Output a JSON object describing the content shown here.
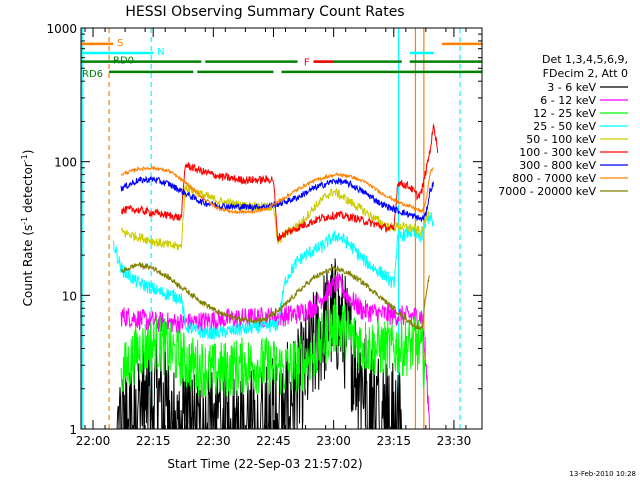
{
  "chart_data": {
    "type": "line",
    "title": "HESSI Observing Summary Count Rates",
    "xlabel": "Start Time (22-Sep-03 21:57:02)",
    "ylabel_parts": [
      "Count Rate (s",
      "-1",
      " detector",
      "-1",
      ")"
    ],
    "x_unit": "minutes after 21:57:02",
    "xlim": [
      0,
      100
    ],
    "ylim": [
      1,
      1000
    ],
    "yscale": "log",
    "x_ticks": [
      {
        "t": 3,
        "label": "22:00"
      },
      {
        "t": 18,
        "label": "22:15"
      },
      {
        "t": 33,
        "label": "22:30"
      },
      {
        "t": 48,
        "label": "22:45"
      },
      {
        "t": 63,
        "label": "23:00"
      },
      {
        "t": 78,
        "label": "23:15"
      },
      {
        "t": 93,
        "label": "23:30"
      }
    ],
    "y_ticks": [
      {
        "v": 1,
        "label": "1"
      },
      {
        "v": 10,
        "label": "10"
      },
      {
        "v": 100,
        "label": "100"
      },
      {
        "v": 1000,
        "label": "1000"
      }
    ],
    "legend_header": [
      "Det 1,3,4,5,6,9,",
      "FDecim 2, Att 0"
    ],
    "legend_position": "right",
    "series": [
      {
        "name": "3 - 6 keV",
        "color": "#000000",
        "noise": 0.45,
        "points": [
          [
            9,
            1.0
          ],
          [
            12,
            1.2
          ],
          [
            15,
            1.6
          ],
          [
            17,
            1.8
          ],
          [
            20,
            1.6
          ],
          [
            23,
            1.2
          ],
          [
            26,
            1.0
          ],
          [
            29,
            1.0
          ],
          [
            40,
            1.0
          ],
          [
            45,
            1.1
          ],
          [
            50,
            1.4
          ],
          [
            54,
            2.0
          ],
          [
            57,
            3.3
          ],
          [
            60,
            5.5
          ],
          [
            63,
            7.5
          ],
          [
            66,
            5.2
          ],
          [
            69,
            2.8
          ],
          [
            72,
            1.8
          ],
          [
            76,
            1.3
          ],
          [
            80,
            1.0
          ]
        ]
      },
      {
        "name": "6 - 12 keV",
        "color": "#ff00ff",
        "noise": 0.08,
        "points": [
          [
            10,
            7.0
          ],
          [
            13,
            6.8
          ],
          [
            16,
            6.5
          ],
          [
            19,
            6.3
          ],
          [
            23,
            6.2
          ],
          [
            27,
            6.2
          ],
          [
            31,
            6.4
          ],
          [
            35,
            6.6
          ],
          [
            39,
            6.7
          ],
          [
            44,
            6.8
          ],
          [
            49,
            6.9
          ],
          [
            54,
            7.3
          ],
          [
            58,
            8.2
          ],
          [
            62,
            11.0
          ],
          [
            64,
            12.5
          ],
          [
            67,
            9.5
          ],
          [
            70,
            7.8
          ],
          [
            74,
            7.3
          ],
          [
            80,
            7.0
          ],
          [
            85,
            7.0
          ],
          [
            86,
            3.0
          ],
          [
            87,
            1.0
          ]
        ]
      },
      {
        "name": "12 - 25 keV",
        "color": "#00ff00",
        "noise": 0.22,
        "points": [
          [
            10,
            2.5
          ],
          [
            14,
            3.8
          ],
          [
            17,
            4.3
          ],
          [
            20,
            4.3
          ],
          [
            24,
            3.5
          ],
          [
            28,
            3.0
          ],
          [
            31,
            2.8
          ],
          [
            33,
            2.7
          ],
          [
            36,
            2.8
          ],
          [
            41,
            3.0
          ],
          [
            46,
            3.0
          ],
          [
            51,
            2.8
          ],
          [
            56,
            3.2
          ],
          [
            59,
            4.0
          ],
          [
            62,
            5.5
          ],
          [
            64,
            6.0
          ],
          [
            67,
            5.0
          ],
          [
            70,
            4.3
          ],
          [
            74,
            4.0
          ],
          [
            79,
            4.0
          ],
          [
            84,
            4.3
          ],
          [
            86,
            3.0
          ]
        ]
      },
      {
        "name": "25 - 50 keV",
        "color": "#00ffff",
        "noise": 0.05,
        "points": [
          [
            8,
            25
          ],
          [
            10,
            16
          ],
          [
            12,
            14
          ],
          [
            14,
            12.5
          ],
          [
            17,
            11.5
          ],
          [
            20,
            10.5
          ],
          [
            23,
            10.0
          ],
          [
            25,
            9.5
          ],
          [
            26,
            6.0
          ],
          [
            28,
            5.5
          ],
          [
            30,
            5.3
          ],
          [
            33,
            5.2
          ],
          [
            37,
            5.4
          ],
          [
            41,
            5.6
          ],
          [
            45,
            5.8
          ],
          [
            49,
            6.0
          ],
          [
            51,
            13
          ],
          [
            54,
            18
          ],
          [
            57,
            21
          ],
          [
            60,
            23
          ],
          [
            62,
            26
          ],
          [
            64,
            28
          ],
          [
            67,
            24
          ],
          [
            70,
            19
          ],
          [
            73,
            16
          ],
          [
            76,
            14
          ],
          [
            78,
            12
          ],
          [
            79,
            27
          ],
          [
            82,
            30
          ],
          [
            85,
            27
          ],
          [
            86,
            35
          ],
          [
            87,
            40
          ],
          [
            88,
            33
          ]
        ]
      },
      {
        "name": "50 - 100 keV",
        "color": "#cccc00",
        "noise": 0.035,
        "points": [
          [
            10,
            30
          ],
          [
            13,
            28
          ],
          [
            17,
            26
          ],
          [
            21,
            24
          ],
          [
            25,
            23
          ],
          [
            26,
            65
          ],
          [
            30,
            57
          ],
          [
            35,
            50
          ],
          [
            40,
            47
          ],
          [
            45,
            46
          ],
          [
            48,
            46
          ],
          [
            49,
            25
          ],
          [
            51,
            29
          ],
          [
            55,
            35
          ],
          [
            58,
            45
          ],
          [
            61,
            55
          ],
          [
            63,
            60
          ],
          [
            65,
            55
          ],
          [
            68,
            48
          ],
          [
            72,
            40
          ],
          [
            76,
            33
          ],
          [
            78,
            32
          ],
          [
            79,
            33
          ],
          [
            82,
            32
          ],
          [
            85,
            30
          ],
          [
            86,
            37
          ],
          [
            87,
            45
          ]
        ]
      },
      {
        "name": "100 - 300 keV",
        "color": "#ff0000",
        "noise": 0.03,
        "points": [
          [
            10,
            43
          ],
          [
            13,
            44
          ],
          [
            17,
            42
          ],
          [
            21,
            40
          ],
          [
            25,
            38
          ],
          [
            26,
            95
          ],
          [
            30,
            85
          ],
          [
            35,
            77
          ],
          [
            40,
            73
          ],
          [
            45,
            73
          ],
          [
            48,
            74
          ],
          [
            49,
            27
          ],
          [
            52,
            30
          ],
          [
            56,
            34
          ],
          [
            60,
            38
          ],
          [
            64,
            40
          ],
          [
            68,
            38
          ],
          [
            72,
            35
          ],
          [
            76,
            32
          ],
          [
            78,
            31
          ],
          [
            79,
            70
          ],
          [
            82,
            65
          ],
          [
            84,
            55
          ],
          [
            85,
            60
          ],
          [
            86,
            85
          ],
          [
            87,
            120
          ],
          [
            88,
            190
          ],
          [
            89,
            120
          ]
        ]
      },
      {
        "name": "300 - 800 keV",
        "color": "#0000ff",
        "noise": 0.025,
        "points": [
          [
            10,
            63
          ],
          [
            14,
            72
          ],
          [
            18,
            74
          ],
          [
            22,
            68
          ],
          [
            26,
            58
          ],
          [
            30,
            50
          ],
          [
            34,
            47
          ],
          [
            38,
            46
          ],
          [
            42,
            46
          ],
          [
            46,
            46
          ],
          [
            50,
            49
          ],
          [
            54,
            54
          ],
          [
            58,
            63
          ],
          [
            62,
            70
          ],
          [
            64,
            72
          ],
          [
            67,
            68
          ],
          [
            71,
            58
          ],
          [
            75,
            48
          ],
          [
            79,
            43
          ],
          [
            83,
            39
          ],
          [
            85,
            37
          ],
          [
            86,
            40
          ],
          [
            87,
            60
          ],
          [
            88,
            70
          ]
        ]
      },
      {
        "name": "800 - 7000 keV",
        "color": "#ff8000",
        "noise": 0.012,
        "points": [
          [
            10,
            80
          ],
          [
            14,
            88
          ],
          [
            18,
            90
          ],
          [
            22,
            85
          ],
          [
            26,
            70
          ],
          [
            30,
            55
          ],
          [
            34,
            45
          ],
          [
            38,
            42
          ],
          [
            42,
            42
          ],
          [
            46,
            44
          ],
          [
            50,
            52
          ],
          [
            54,
            62
          ],
          [
            58,
            72
          ],
          [
            62,
            78
          ],
          [
            64,
            80
          ],
          [
            67,
            78
          ],
          [
            71,
            70
          ],
          [
            75,
            58
          ],
          [
            79,
            50
          ],
          [
            83,
            45
          ],
          [
            85,
            42
          ],
          [
            86,
            50
          ],
          [
            87,
            80
          ],
          [
            88,
            95
          ]
        ]
      },
      {
        "name": "7000 - 20000 keV",
        "color": "#808000",
        "noise": 0.02,
        "points": [
          [
            10,
            15
          ],
          [
            14,
            17
          ],
          [
            18,
            16
          ],
          [
            22,
            13.5
          ],
          [
            26,
            11
          ],
          [
            30,
            9
          ],
          [
            34,
            7.5
          ],
          [
            38,
            6.8
          ],
          [
            42,
            6.5
          ],
          [
            46,
            6.6
          ],
          [
            50,
            8
          ],
          [
            54,
            10.5
          ],
          [
            58,
            13.5
          ],
          [
            62,
            15.5
          ],
          [
            64,
            15.8
          ],
          [
            67,
            14.5
          ],
          [
            71,
            12
          ],
          [
            75,
            9.5
          ],
          [
            79,
            7.5
          ],
          [
            83,
            6
          ],
          [
            85,
            5.5
          ],
          [
            86,
            10
          ],
          [
            87,
            15
          ]
        ]
      }
    ],
    "flags": [
      {
        "label": "S",
        "color": "#ff8000",
        "y": 760,
        "segments": [
          [
            0,
            8
          ],
          [
            90,
            100
          ]
        ]
      },
      {
        "label": "N",
        "color": "#00ffff",
        "y": 650,
        "segments": [
          [
            0,
            18
          ],
          [
            82,
            88
          ]
        ]
      },
      {
        "label": "RD0",
        "color": "#008000",
        "y": 560,
        "segments": [
          [
            0,
            30
          ],
          [
            31,
            54
          ],
          [
            58,
            80
          ],
          [
            82,
            100
          ]
        ]
      },
      {
        "label": "RD6",
        "color": "#008000",
        "y": 470,
        "segments": [
          [
            7,
            28
          ],
          [
            29,
            48
          ],
          [
            50,
            80
          ],
          [
            80,
            100
          ]
        ]
      },
      {
        "label": "F",
        "color": "#ff0000",
        "y": 560,
        "segments": [
          [
            58,
            63
          ]
        ]
      }
    ],
    "vlines": [
      {
        "t": 7.0,
        "color": "#ff8000",
        "style": "dashed"
      },
      {
        "t": 17.5,
        "color": "#00ffff",
        "style": "dashed"
      },
      {
        "t": 85.5,
        "color": "#ff8000",
        "style": "solid"
      },
      {
        "t": 94.5,
        "color": "#00ffff",
        "style": "dashed"
      }
    ]
  },
  "footer_date": "13-Feb-2010 10:28"
}
